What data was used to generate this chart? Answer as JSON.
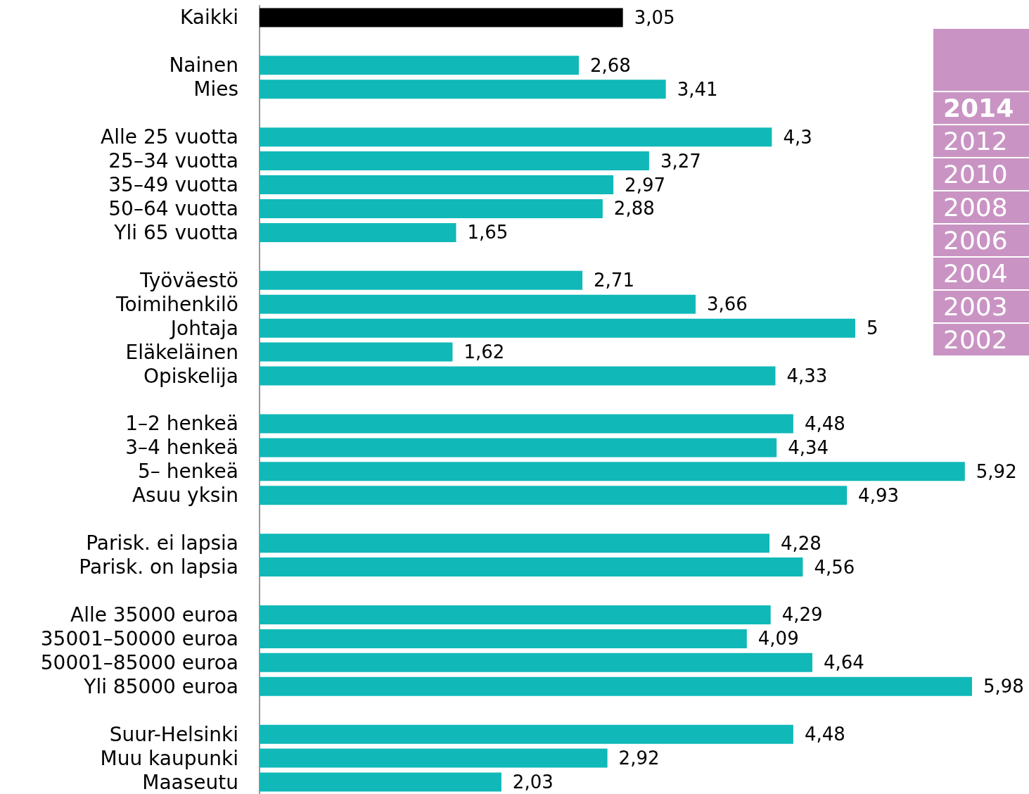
{
  "chart_data": {
    "type": "bar",
    "orientation": "horizontal",
    "categories": [
      "Kaikki",
      null,
      "Nainen",
      "Mies",
      null,
      "Alle 25 vuotta",
      "25–34 vuotta",
      "35–49 vuotta",
      "50–64 vuotta",
      "Yli 65 vuotta",
      null,
      "Työväestö",
      "Toimihenkilö",
      "Johtaja",
      "Eläkeläinen",
      "Opiskelija",
      null,
      "1–2 henkeä",
      "3–4 henkeä",
      "5– henkeä",
      "Asuu yksin",
      null,
      "Parisk. ei lapsia",
      "Parisk. on lapsia",
      null,
      "Alle 35000 euroa",
      "35001–50000 euroa",
      "50001–85000 euroa",
      "Yli 85000 euroa",
      null,
      "Suur-Helsinki",
      "Muu kaupunki",
      "Maaseutu"
    ],
    "values": [
      3.05,
      null,
      2.68,
      3.41,
      null,
      4.3,
      3.27,
      2.97,
      2.88,
      1.65,
      null,
      2.71,
      3.66,
      5,
      1.62,
      4.33,
      null,
      4.48,
      4.34,
      5.92,
      4.93,
      null,
      4.28,
      4.56,
      null,
      4.29,
      4.09,
      4.64,
      5.98,
      null,
      4.48,
      2.92,
      2.03
    ],
    "value_labels": [
      "3,05",
      null,
      "2,68",
      "3,41",
      null,
      "4,3",
      "3,27",
      "2,97",
      "2,88",
      "1,65",
      null,
      "2,71",
      "3,66",
      "5",
      "1,62",
      "4,33",
      null,
      "4,48",
      "4,34",
      "5,92",
      "4,93",
      null,
      "4,28",
      "4,56",
      null,
      "4,29",
      "4,09",
      "4,64",
      "5,98",
      null,
      "4,48",
      "2,92",
      "2,03"
    ],
    "colors": [
      "#000000",
      null,
      "#10b8b8",
      "#10b8b8",
      null,
      "#10b8b8",
      "#10b8b8",
      "#10b8b8",
      "#10b8b8",
      "#10b8b8",
      null,
      "#10b8b8",
      "#10b8b8",
      "#10b8b8",
      "#10b8b8",
      "#10b8b8",
      null,
      "#10b8b8",
      "#10b8b8",
      "#10b8b8",
      "#10b8b8",
      null,
      "#10b8b8",
      "#10b8b8",
      null,
      "#10b8b8",
      "#10b8b8",
      "#10b8b8",
      "#10b8b8",
      null,
      "#10b8b8",
      "#10b8b8",
      "#10b8b8"
    ],
    "annotations": [
      "2014",
      "2012",
      "2010",
      "2008",
      "2006",
      "2004",
      "2003",
      "2002"
    ],
    "grid": false
  }
}
